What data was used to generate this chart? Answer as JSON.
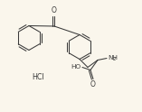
{
  "bg_color": "#faf6ec",
  "line_color": "#3a3a3a",
  "text_color": "#3a3a3a",
  "hcl_text": "HCl",
  "ho_text": "HO",
  "o_text": "O",
  "nh2_text": "NH",
  "two_sub": "2",
  "figsize": [
    1.57,
    1.24
  ],
  "dpi": 100,
  "lw": 0.75,
  "ring_r": 13.5
}
